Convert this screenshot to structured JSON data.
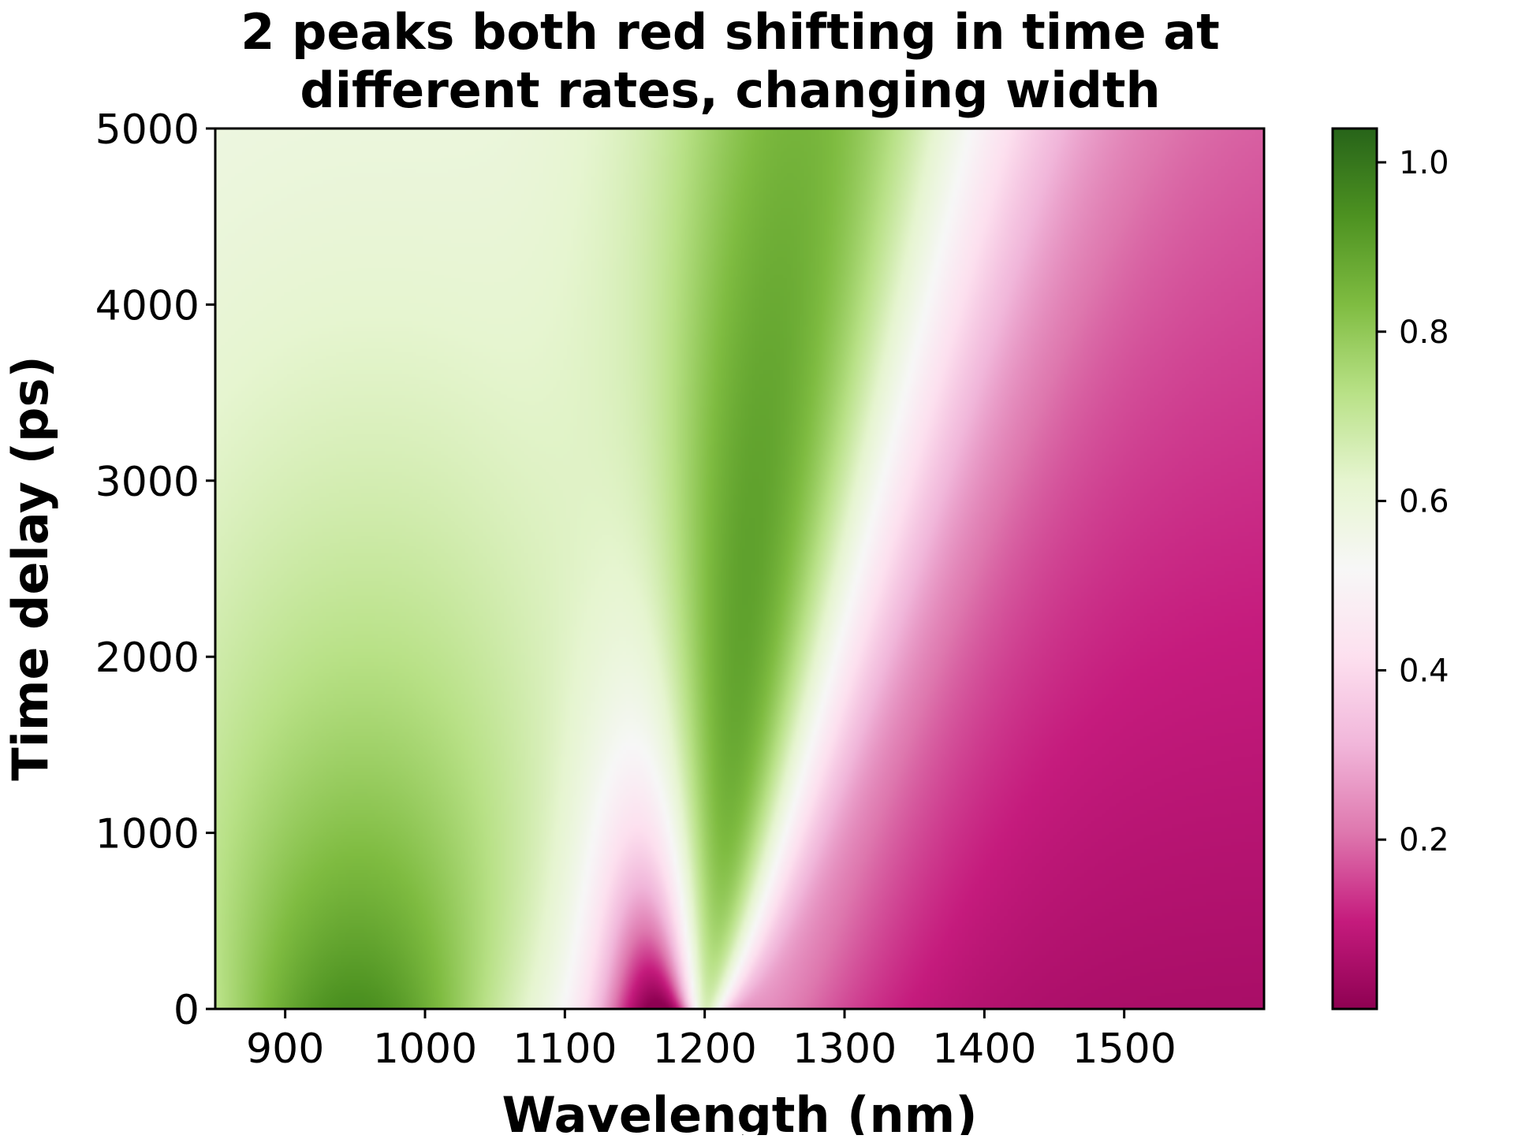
{
  "chart_data": {
    "type": "heatmap",
    "title_lines": [
      "2 peaks both red shifting in time at",
      "different rates, changing width"
    ],
    "xlabel": "Wavelength (nm)",
    "ylabel": "Time delay (ps)",
    "xlim": [
      850,
      1600
    ],
    "ylim": [
      0,
      5000
    ],
    "x_ticks": [
      900,
      1000,
      1100,
      1200,
      1300,
      1400,
      1500
    ],
    "x_tick_labels": [
      "900",
      "1000",
      "1100",
      "1200",
      "1300",
      "1400",
      "1500"
    ],
    "y_ticks": [
      0,
      1000,
      2000,
      3000,
      4000,
      5000
    ],
    "y_tick_labels": [
      "0",
      "1000",
      "2000",
      "3000",
      "4000",
      "5000"
    ],
    "colormap": "PiYG",
    "colorbar": {
      "range": [
        0.0,
        1.04
      ],
      "ticks": [
        0.2,
        0.4,
        0.6,
        0.8,
        1.0
      ],
      "tick_labels": [
        "0.2",
        "0.4",
        "0.6",
        "0.8",
        "1.0"
      ]
    },
    "features": [
      {
        "description": "broad peak",
        "center_nm_at_t0": 950,
        "max_value": 1.0,
        "red_shift": "slow",
        "width": "broad, widening over time"
      },
      {
        "description": "narrow peak",
        "center_nm_at_t0": 1200,
        "center_nm_at_t3500": 1260,
        "max_value": 1.04,
        "red_shift": "faster",
        "width": "narrow at early times, broadening over time"
      }
    ],
    "grid": false
  }
}
